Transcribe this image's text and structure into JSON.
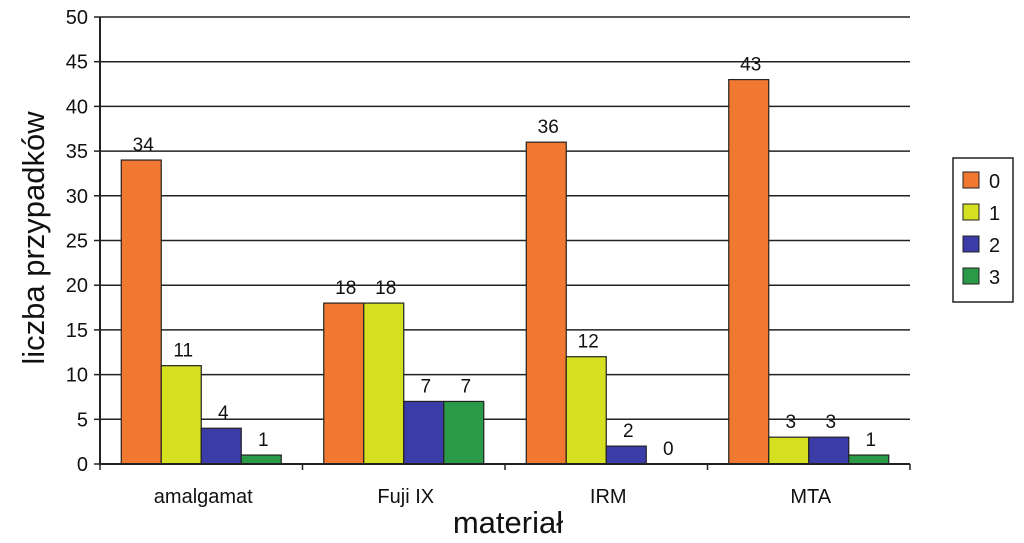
{
  "chart_data": {
    "type": "bar",
    "categories": [
      "amalgamat",
      "Fuji IX",
      "IRM",
      "MTA"
    ],
    "series": [
      {
        "name": "0",
        "values": [
          34,
          18,
          36,
          43
        ],
        "color": "#f07830"
      },
      {
        "name": "1",
        "values": [
          11,
          18,
          12,
          3
        ],
        "color": "#d4e020"
      },
      {
        "name": "2",
        "values": [
          4,
          7,
          2,
          3
        ],
        "color": "#3c3ca8"
      },
      {
        "name": "3",
        "values": [
          1,
          7,
          0,
          1
        ],
        "color": "#2a9a48"
      }
    ],
    "xlabel": "materiał",
    "ylabel": "liczba przypadków",
    "ylim": [
      0,
      50
    ],
    "yticks": [
      0,
      5,
      10,
      15,
      20,
      25,
      30,
      35,
      40,
      45,
      50
    ],
    "grid": true,
    "legend": "right"
  }
}
